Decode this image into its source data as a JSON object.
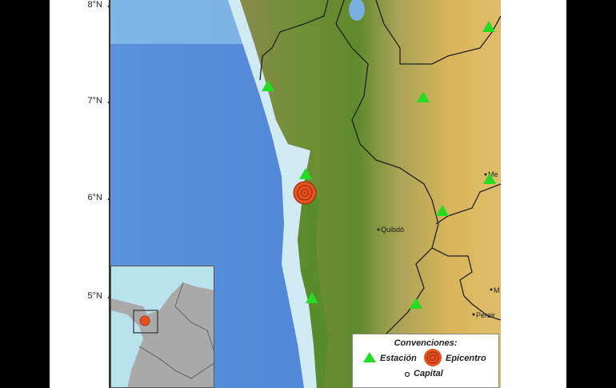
{
  "map": {
    "latitude_labels": [
      "8°N",
      "7°N",
      "6°N",
      "5°N"
    ],
    "cities": [
      {
        "name": "Quibdó"
      },
      {
        "name": "Me"
      },
      {
        "name": "M"
      },
      {
        "name": "Pereir"
      }
    ],
    "station_count": 8,
    "colors": {
      "station": "#22dd22",
      "epicenter": "#e8501c",
      "ocean_deep": "#4f86d6",
      "ocean_shallow": "#b9e3ec",
      "lowland": "#6d8f32",
      "highland": "#d9b45a"
    }
  },
  "legend": {
    "title": "Convenciones:",
    "station": "Estación",
    "epicenter": "Epicentro",
    "capital": "Capital"
  }
}
